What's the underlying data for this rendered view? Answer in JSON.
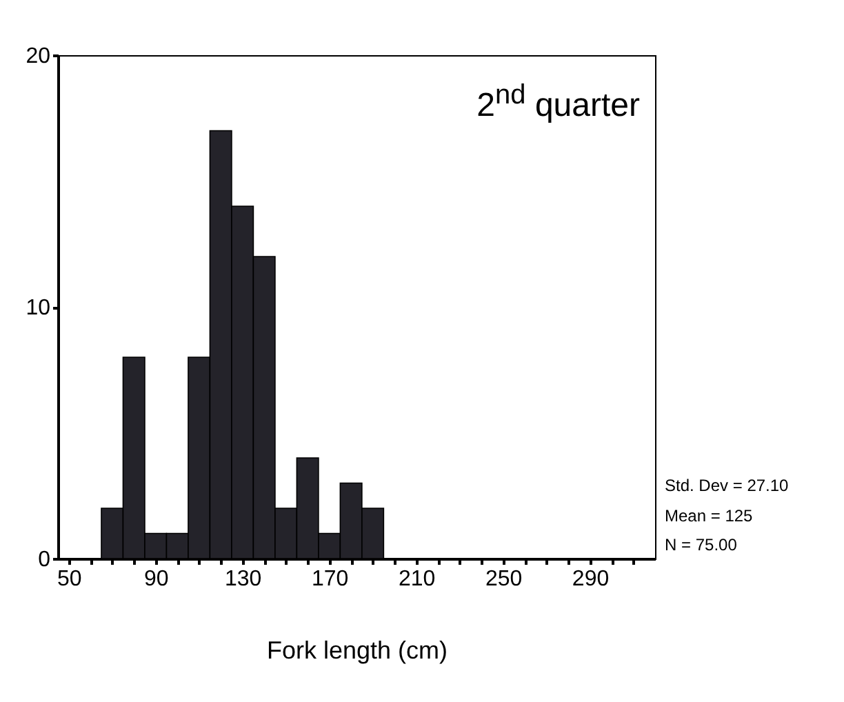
{
  "chart_data": {
    "type": "histogram",
    "xlabel": "Fork length (cm)",
    "bins": [
      65,
      75,
      85,
      95,
      105,
      115,
      125,
      135,
      145,
      155,
      165,
      175,
      185,
      195
    ],
    "values": [
      2,
      8,
      1,
      1,
      8,
      17,
      14,
      12,
      2,
      4,
      1,
      3,
      2
    ],
    "color": "#24232a",
    "xlim": [
      45,
      320
    ],
    "xticks": [
      50,
      {
        "value": 60,
        "label": null
      },
      {
        "value": 70,
        "label": null
      },
      {
        "value": 80,
        "label": null
      },
      90,
      {
        "value": 100,
        "label": null
      },
      {
        "value": 110,
        "label": null
      },
      {
        "value": 120,
        "label": null
      },
      130,
      {
        "value": 140,
        "label": null
      },
      {
        "value": 150,
        "label": null
      },
      {
        "value": 160,
        "label": null
      },
      170,
      {
        "value": 180,
        "label": null
      },
      {
        "value": 190,
        "label": null
      },
      {
        "value": 200,
        "label": null
      },
      210,
      {
        "value": 220,
        "label": null
      },
      {
        "value": 230,
        "label": null
      },
      {
        "value": 240,
        "label": null
      },
      250,
      {
        "value": 260,
        "label": null
      },
      {
        "value": 270,
        "label": null
      },
      {
        "value": 280,
        "label": null
      },
      290,
      {
        "value": 300,
        "label": null
      },
      {
        "value": 310,
        "label": null
      }
    ],
    "ylim": [
      0,
      20
    ],
    "yticks": [
      0,
      10,
      20
    ],
    "grid": false,
    "annotations": [
      "2$^{nd}$ quarter",
      "Std. Dev = 27.10",
      "Mean = 125",
      "N = 75.00"
    ]
  }
}
